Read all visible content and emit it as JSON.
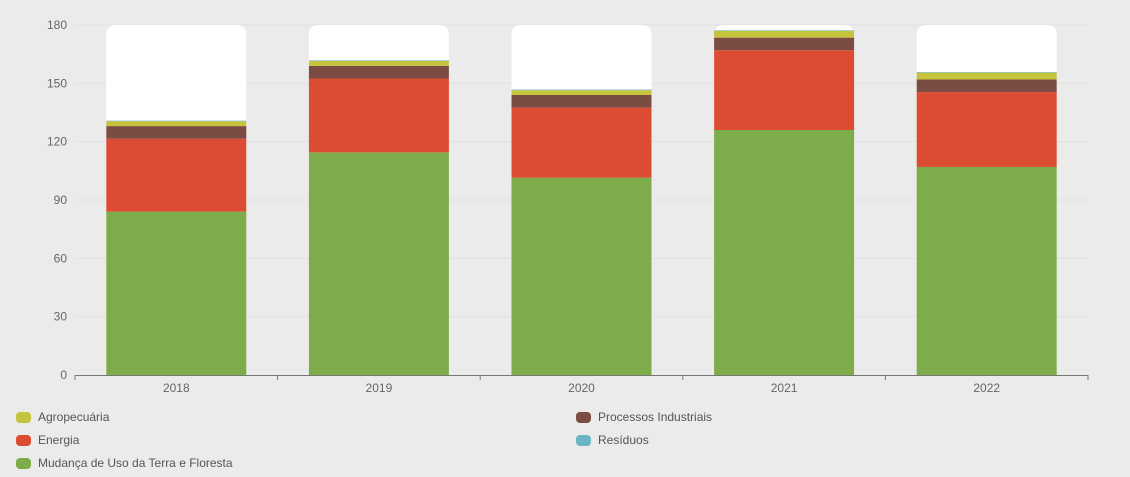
{
  "chart_data": {
    "type": "bar",
    "stacked": true,
    "categories": [
      "2018",
      "2019",
      "2020",
      "2021",
      "2022"
    ],
    "ylim": [
      0,
      180
    ],
    "yticks": [
      "0",
      "30",
      "60",
      "90",
      "120",
      "150",
      "180"
    ],
    "grid": true,
    "legend_position": "bottom",
    "background_bar_max": 180,
    "series": [
      {
        "name": "Mudança de Uso da Terra e Floresta",
        "color": "#7fac4a",
        "values": [
          84,
          114.5,
          101.5,
          126,
          107
        ]
      },
      {
        "name": "Energia",
        "color": "#db4c33",
        "values": [
          37.5,
          38,
          36,
          41,
          38.5
        ]
      },
      {
        "name": "Processos Industriais",
        "color": "#7b4c42",
        "values": [
          6.5,
          6.5,
          6.5,
          6.5,
          6.5
        ]
      },
      {
        "name": "Agropecuária",
        "color": "#c6c43c",
        "values": [
          2.5,
          2.5,
          2.5,
          3.5,
          3.5
        ]
      },
      {
        "name": "Resíduos",
        "color": "#6ab6c4",
        "values": [
          0.3,
          0.3,
          0.3,
          0.3,
          0.3
        ]
      }
    ]
  },
  "legend": {
    "left": [
      "Agropecuária",
      "Energia",
      "Mudança de Uso da Terra e Floresta"
    ],
    "right": [
      "Processos Industriais",
      "Resíduos"
    ]
  }
}
